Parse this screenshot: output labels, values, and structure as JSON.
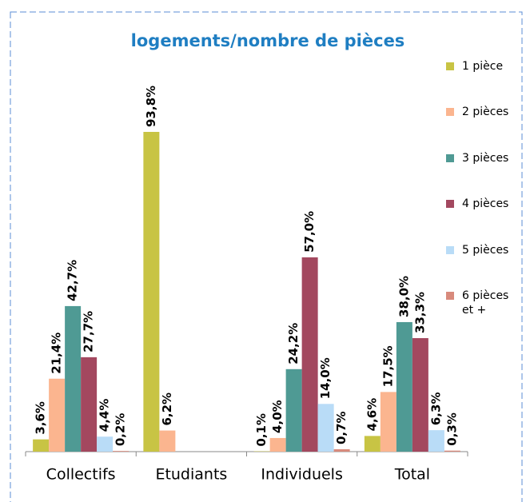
{
  "chart_data": {
    "type": "bar",
    "title": "logements/nombre de pièces",
    "categories": [
      "Collectifs",
      "Etudiants",
      "Individuels",
      "Total"
    ],
    "series": [
      {
        "name": "1 pièce",
        "color": "#c8c444",
        "values": [
          3.6,
          93.8,
          0.1,
          4.6
        ],
        "value_labels": [
          "3,6%",
          "93,8%",
          "0,1%",
          "4,6%"
        ]
      },
      {
        "name": "2 pièces",
        "color": "#fbb58f",
        "values": [
          21.4,
          6.2,
          4.0,
          17.5
        ],
        "value_labels": [
          "21,4%",
          "6,2%",
          "4,0%",
          "17,5%"
        ]
      },
      {
        "name": "3 pièces",
        "color": "#4f9a94",
        "values": [
          42.7,
          null,
          24.2,
          38.0
        ],
        "value_labels": [
          "42,7%",
          null,
          "24,2%",
          "38,0%"
        ]
      },
      {
        "name": "4 pièces",
        "color": "#a3485f",
        "values": [
          27.7,
          null,
          57.0,
          33.3
        ],
        "value_labels": [
          "27,7%",
          null,
          "57,0%",
          "33,3%"
        ]
      },
      {
        "name": "5 pièces",
        "color": "#b9dcf7",
        "values": [
          4.4,
          null,
          14.0,
          6.3
        ],
        "value_labels": [
          "4,4%",
          null,
          "14,0%",
          "6,3%"
        ]
      },
      {
        "name": "6 pièces et +",
        "color": "#d88a7c",
        "values": [
          0.2,
          null,
          0.7,
          0.3
        ],
        "value_labels": [
          "0,2%",
          null,
          "0,7%",
          "0,3%"
        ]
      }
    ],
    "legend": "right"
  }
}
